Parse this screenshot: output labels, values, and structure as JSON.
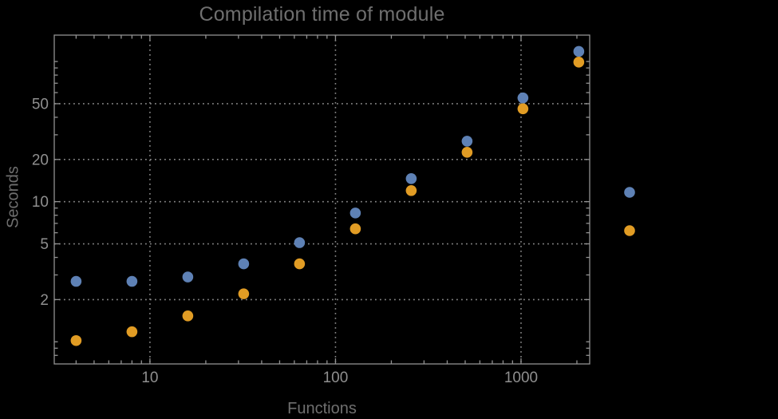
{
  "chart_data": {
    "type": "scatter",
    "title": "Compilation time of module",
    "xlabel": "Functions",
    "ylabel": "Seconds",
    "xscale": "log",
    "yscale": "log",
    "xlim": [
      3.05,
      2344
    ],
    "ylim": [
      0.695,
      154.3
    ],
    "grid": {
      "style": "dotted",
      "color": "#868686",
      "at": "labeled-ticks-only"
    },
    "x": [
      4,
      8,
      16,
      32,
      64,
      128,
      256,
      512,
      1024,
      2048
    ],
    "series": [
      {
        "name": "blue-series",
        "color": "#5E81B5",
        "values": [
          2.7,
          2.7,
          2.9,
          3.6,
          5.1,
          8.3,
          14.6,
          27,
          55,
          118
        ]
      },
      {
        "name": "orange-series",
        "color": "#E19C24",
        "values": [
          1.02,
          1.18,
          1.53,
          2.2,
          3.6,
          6.4,
          12,
          22.5,
          46,
          99
        ]
      }
    ],
    "x_ticks": {
      "values": [
        10,
        100,
        1000
      ],
      "labels": [
        "10",
        "100",
        "1000"
      ],
      "minor": [
        4,
        5,
        6,
        7,
        8,
        9,
        20,
        30,
        40,
        50,
        60,
        70,
        80,
        90,
        200,
        300,
        400,
        500,
        600,
        700,
        800,
        900,
        2000
      ]
    },
    "y_ticks": {
      "values": [
        2,
        5,
        10,
        20,
        50
      ],
      "labels": [
        "2",
        "5",
        "10",
        "20",
        "50"
      ],
      "minor": [
        0.8,
        0.9,
        1,
        3,
        4,
        6,
        7,
        8,
        9,
        30,
        40,
        60,
        70,
        80,
        90,
        100
      ]
    },
    "legend": {
      "position": "right-outside",
      "entries": [
        {
          "marker_color": "#5E81B5",
          "label": ""
        },
        {
          "marker_color": "#E19C24",
          "label": ""
        }
      ]
    },
    "colors": {
      "background": "#000000",
      "frame": "#929292",
      "tick_label": "#8f8f8f",
      "title": "#6f6f6f",
      "axis_label": "#6f6f6f"
    }
  }
}
